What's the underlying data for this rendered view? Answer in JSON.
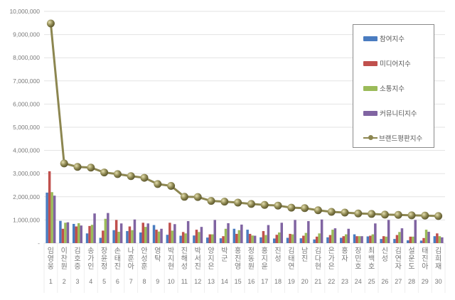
{
  "chart_data": {
    "type": "bar",
    "title": "",
    "xlabel": "",
    "ylabel": "",
    "ylim": [
      0,
      10000000
    ],
    "grid": true,
    "legend_position": "upper right",
    "y_ticks": [
      "-",
      "1,000,000",
      "2,000,000",
      "3,000,000",
      "4,000,000",
      "5,000,000",
      "6,000,000",
      "7,000,000",
      "8,000,000",
      "9,000,000",
      "10,000,000"
    ],
    "categories": [
      "임영웅",
      "이찬원",
      "김호중",
      "송가인",
      "장윤정",
      "손태진",
      "나훈아",
      "안성훈",
      "영탁",
      "박지현",
      "진해성",
      "박서진",
      "양지은",
      "박군",
      "홍진영",
      "정동원",
      "홍지윤",
      "진성",
      "김태연",
      "남진",
      "김다현",
      "은가은",
      "홍자",
      "장민호",
      "최백호",
      "신성",
      "김연자",
      "설운도",
      "태진아",
      "김희재"
    ],
    "ranks": [
      "1",
      "2",
      "3",
      "4",
      "5",
      "6",
      "7",
      "8",
      "9",
      "10",
      "11",
      "12",
      "13",
      "14",
      "15",
      "16",
      "17",
      "18",
      "19",
      "20",
      "21",
      "22",
      "23",
      "24",
      "25",
      "26",
      "27",
      "28",
      "29",
      "30"
    ],
    "series": [
      {
        "name": "참여지수",
        "kind": "bar",
        "color": "#4a7cc0",
        "values": [
          2180000,
          960000,
          830000,
          420000,
          230000,
          560000,
          520000,
          460000,
          780000,
          360000,
          320000,
          330000,
          240000,
          210000,
          620000,
          580000,
          250000,
          200000,
          230000,
          210000,
          160000,
          250000,
          230000,
          380000,
          290000,
          180000,
          180000,
          120000,
          110000,
          300000
        ]
      },
      {
        "name": "미디어지수",
        "kind": "bar",
        "color": "#c0504d",
        "values": [
          3100000,
          620000,
          720000,
          740000,
          540000,
          1000000,
          720000,
          880000,
          580000,
          880000,
          480000,
          580000,
          380000,
          300000,
          400000,
          400000,
          520000,
          360000,
          400000,
          320000,
          280000,
          350000,
          300000,
          300000,
          320000,
          300000,
          350000,
          280000,
          220000,
          420000
        ]
      },
      {
        "name": "소통지수",
        "kind": "bar",
        "color": "#9bbb59",
        "values": [
          2200000,
          880000,
          860000,
          790000,
          1050000,
          490000,
          560000,
          700000,
          500000,
          540000,
          420000,
          480000,
          380000,
          620000,
          560000,
          330000,
          350000,
          460000,
          380000,
          440000,
          420000,
          580000,
          380000,
          300000,
          380000,
          280000,
          480000,
          280000,
          580000,
          300000
        ]
      },
      {
        "name": "커뮤니티지수",
        "kind": "bar",
        "color": "#8064a2",
        "values": [
          2050000,
          900000,
          760000,
          1280000,
          1300000,
          850000,
          1020000,
          850000,
          620000,
          820000,
          950000,
          700000,
          1000000,
          860000,
          800000,
          320000,
          780000,
          880000,
          1000000,
          950000,
          1020000,
          640000,
          620000,
          300000,
          850000,
          1000000,
          640000,
          1000000,
          490000,
          250000
        ]
      },
      {
        "name": "브랜드평판지수",
        "kind": "line",
        "color": "#8c8650",
        "values": [
          9480000,
          3440000,
          3290000,
          3260000,
          3050000,
          2980000,
          2890000,
          2820000,
          2550000,
          2470000,
          2000000,
          1990000,
          1820000,
          1790000,
          1750000,
          1690000,
          1650000,
          1620000,
          1530000,
          1510000,
          1420000,
          1350000,
          1320000,
          1280000,
          1260000,
          1230000,
          1220000,
          1200000,
          1190000,
          1170000
        ]
      }
    ]
  },
  "legend": {
    "items": [
      {
        "label": "참여지수",
        "color": "#4a7cc0",
        "kind": "bar"
      },
      {
        "label": "미디어지수",
        "color": "#c0504d",
        "kind": "bar"
      },
      {
        "label": "소통지수",
        "color": "#9bbb59",
        "kind": "bar"
      },
      {
        "label": "커뮤니티지수",
        "color": "#8064a2",
        "kind": "bar"
      },
      {
        "label": "브랜드평판지수",
        "color": "#8c8650",
        "kind": "line"
      }
    ]
  }
}
